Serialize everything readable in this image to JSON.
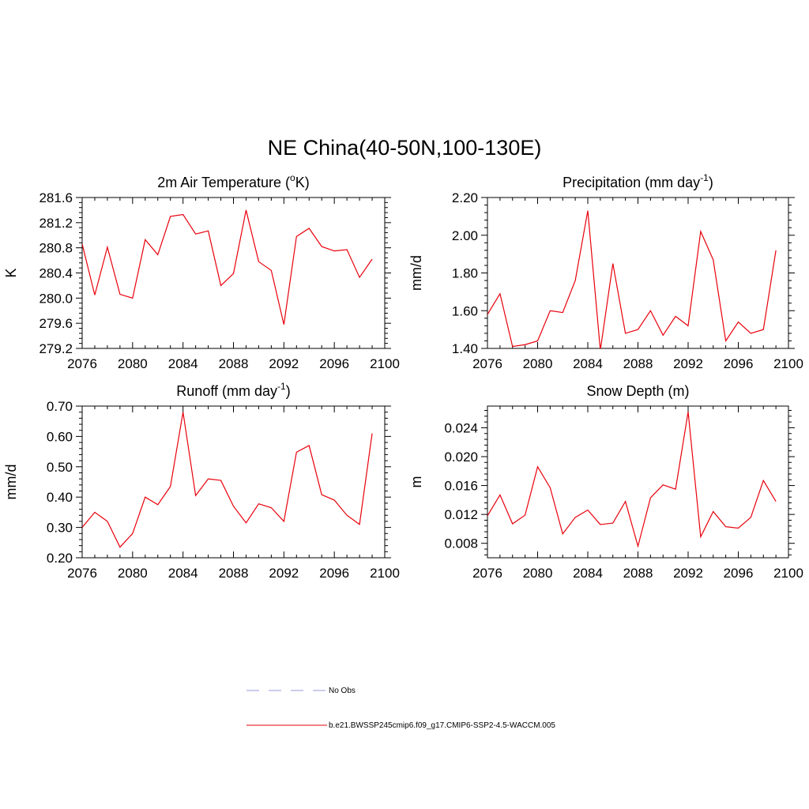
{
  "title": "NE China(40-50N,100-130E)",
  "colors": {
    "series_line": "#e8000b",
    "obs_line": "#9999dd",
    "axis": "#000000"
  },
  "legend": {
    "obs_label": "No Obs",
    "series_label": "b.e21.BWSSP245cmip6.f09_g17.CMIP6-SSP2-4.5-WACCM.005"
  },
  "chart_data": [
    {
      "type": "line",
      "title": "2m Air Temperature (",
      "title_sup": "o",
      "title_end": "K)",
      "ylabel": "K",
      "xlim": [
        2076,
        2100
      ],
      "ylim": [
        279.2,
        281.6
      ],
      "xticks": [
        2076,
        2080,
        2084,
        2088,
        2092,
        2096,
        2100
      ],
      "yticks": [
        "279.2",
        "279.6",
        "280.0",
        "280.4",
        "280.8",
        "281.2",
        "281.6"
      ],
      "x": [
        2076,
        2077,
        2078,
        2079,
        2080,
        2081,
        2082,
        2083,
        2084,
        2085,
        2086,
        2087,
        2088,
        2089,
        2090,
        2091,
        2092,
        2093,
        2094,
        2095,
        2096,
        2097,
        2098,
        2099
      ],
      "values": [
        280.86,
        280.05,
        280.81,
        280.06,
        280.0,
        280.93,
        280.69,
        281.3,
        281.33,
        281.02,
        281.07,
        280.2,
        280.39,
        281.4,
        280.58,
        280.44,
        279.58,
        280.98,
        281.11,
        280.82,
        280.75,
        280.77,
        280.33,
        280.62
      ],
      "grid": false,
      "legend": "none"
    },
    {
      "type": "line",
      "title": "Precipitation (mm day",
      "title_sup": "-1",
      "title_end": ")",
      "ylabel": "mm/d",
      "xlim": [
        2076,
        2100
      ],
      "ylim": [
        1.4,
        2.2
      ],
      "xticks": [
        2076,
        2080,
        2084,
        2088,
        2092,
        2096,
        2100
      ],
      "yticks": [
        "1.40",
        "1.60",
        "1.80",
        "2.00",
        "2.20"
      ],
      "x": [
        2076,
        2077,
        2078,
        2079,
        2080,
        2081,
        2082,
        2083,
        2084,
        2085,
        2086,
        2087,
        2088,
        2089,
        2090,
        2091,
        2092,
        2093,
        2094,
        2095,
        2096,
        2097,
        2098,
        2099
      ],
      "values": [
        1.58,
        1.69,
        1.41,
        1.42,
        1.44,
        1.6,
        1.59,
        1.76,
        2.13,
        1.39,
        1.85,
        1.48,
        1.5,
        1.6,
        1.47,
        1.57,
        1.52,
        2.02,
        1.87,
        1.44,
        1.54,
        1.48,
        1.5,
        1.92
      ],
      "grid": false,
      "legend": "none"
    },
    {
      "type": "line",
      "title": "Runoff (mm day",
      "title_sup": "-1",
      "title_end": ")",
      "ylabel": "mm/d",
      "xlim": [
        2076,
        2100
      ],
      "ylim": [
        0.2,
        0.7
      ],
      "xticks": [
        2076,
        2080,
        2084,
        2088,
        2092,
        2096,
        2100
      ],
      "yticks": [
        "0.20",
        "0.30",
        "0.40",
        "0.50",
        "0.60",
        "0.70"
      ],
      "x": [
        2076,
        2077,
        2078,
        2079,
        2080,
        2081,
        2082,
        2083,
        2084,
        2085,
        2086,
        2087,
        2088,
        2089,
        2090,
        2091,
        2092,
        2093,
        2094,
        2095,
        2096,
        2097,
        2098,
        2099
      ],
      "values": [
        0.3,
        0.35,
        0.32,
        0.235,
        0.28,
        0.4,
        0.375,
        0.435,
        0.68,
        0.405,
        0.46,
        0.455,
        0.37,
        0.315,
        0.378,
        0.365,
        0.32,
        0.548,
        0.57,
        0.408,
        0.39,
        0.34,
        0.31,
        0.61
      ],
      "grid": false,
      "legend": "none"
    },
    {
      "type": "line",
      "title": "Snow Depth (m)",
      "title_sup": "",
      "title_end": "",
      "ylabel": "m",
      "xlim": [
        2076,
        2100
      ],
      "ylim": [
        0.006,
        0.027
      ],
      "xticks": [
        2076,
        2080,
        2084,
        2088,
        2092,
        2096,
        2100
      ],
      "yticks": [
        "0.008",
        "0.012",
        "0.016",
        "0.020",
        "0.024"
      ],
      "x": [
        2076,
        2077,
        2078,
        2079,
        2080,
        2081,
        2082,
        2083,
        2084,
        2085,
        2086,
        2087,
        2088,
        2089,
        2090,
        2091,
        2092,
        2093,
        2094,
        2095,
        2096,
        2097,
        2098,
        2099
      ],
      "values": [
        0.0118,
        0.0147,
        0.0107,
        0.0119,
        0.0186,
        0.0157,
        0.0093,
        0.0116,
        0.0126,
        0.0106,
        0.0108,
        0.0138,
        0.0076,
        0.0143,
        0.0161,
        0.0155,
        0.0262,
        0.0089,
        0.0124,
        0.0103,
        0.0101,
        0.0116,
        0.0167,
        0.0138
      ],
      "grid": false,
      "legend": "none"
    }
  ]
}
